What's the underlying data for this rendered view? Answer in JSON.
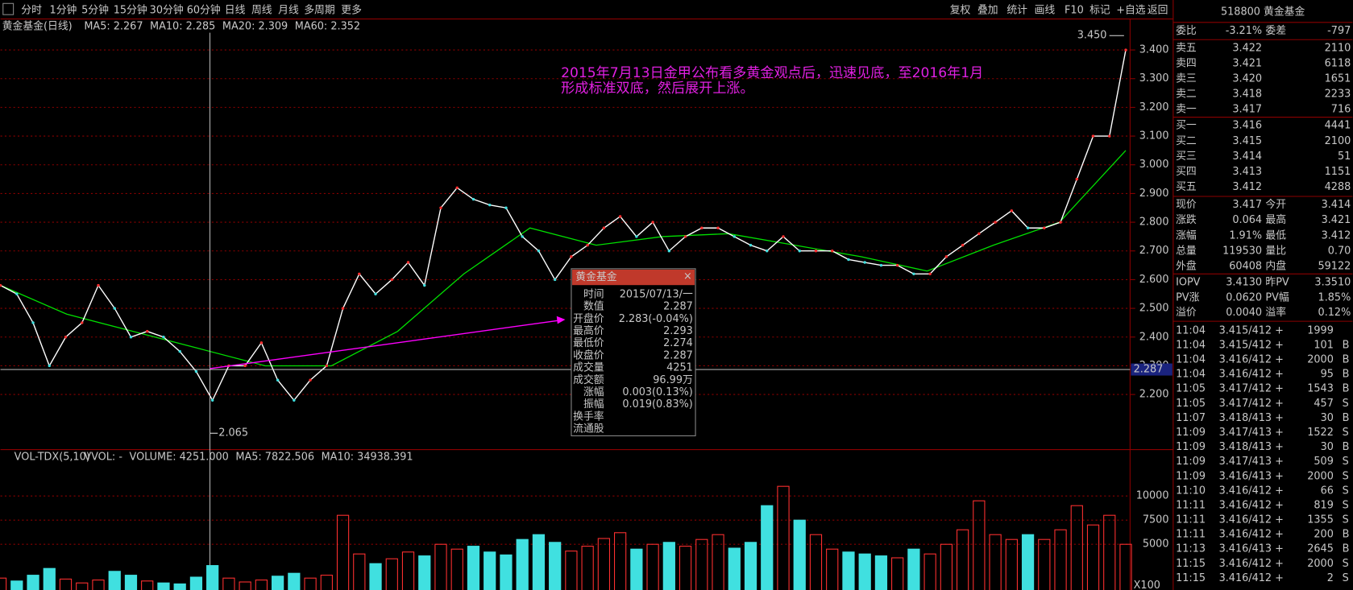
{
  "toolbar": {
    "periods": [
      "分时",
      "1分钟",
      "5分钟",
      "15分钟",
      "30分钟",
      "60分钟",
      "日线",
      "周线",
      "月线",
      "多周期",
      "更多"
    ],
    "tools": [
      "复权",
      "叠加",
      "统计",
      "画线",
      "F10",
      "标记",
      "+自选",
      "返回"
    ]
  },
  "chart_data": [
    {
      "type": "line",
      "title": "黄金基金(日线)",
      "legend": [
        {
          "name": "MA5: 2.267",
          "color": "#ffffff"
        },
        {
          "name": "MA10: 2.285",
          "color": "#ffff00"
        },
        {
          "name": "MA20: 2.309",
          "color": "#ff00ff"
        },
        {
          "name": "MA60: 2.352",
          "color": "#00e000"
        }
      ],
      "color": "#ffffff",
      "values": [
        2.58,
        2.55,
        2.45,
        2.3,
        2.4,
        2.45,
        2.58,
        2.5,
        2.4,
        2.42,
        2.4,
        2.35,
        2.28,
        2.18,
        2.3,
        2.3,
        2.38,
        2.25,
        2.18,
        2.25,
        2.3,
        2.5,
        2.62,
        2.55,
        2.6,
        2.66,
        2.58,
        2.85,
        2.92,
        2.88,
        2.86,
        2.85,
        2.75,
        2.7,
        2.6,
        2.68,
        2.72,
        2.78,
        2.82,
        2.75,
        2.8,
        2.7,
        2.75,
        2.78,
        2.78,
        2.75,
        2.72,
        2.7,
        2.75,
        2.7,
        2.7,
        2.7,
        2.67,
        2.66,
        2.65,
        2.65,
        2.62,
        2.62,
        2.68,
        2.72,
        2.76,
        2.8,
        2.84,
        2.78,
        2.78,
        2.8,
        2.95,
        3.1,
        3.1,
        3.4
      ],
      "ma60": {
        "color": "#00e000",
        "values": [
          2.58,
          2.48,
          2.42,
          2.36,
          2.3,
          2.3,
          2.42,
          2.62,
          2.78,
          2.72,
          2.75,
          2.76,
          2.72,
          2.68,
          2.63,
          2.72,
          2.8,
          3.05
        ]
      },
      "ylim": [
        2.008,
        3.508
      ],
      "yticks": [
        {
          "value": 2.2,
          "label": "2.200"
        },
        {
          "value": 2.3,
          "label": "2.300"
        },
        {
          "value": 2.4,
          "label": "2.400"
        },
        {
          "value": 2.5,
          "label": "2.500"
        },
        {
          "value": 2.6,
          "label": "2.600"
        },
        {
          "value": 2.7,
          "label": "2.700"
        },
        {
          "value": 2.8,
          "label": "2.800"
        },
        {
          "value": 2.9,
          "label": "2.900"
        },
        {
          "value": 3.0,
          "label": "3.000"
        },
        {
          "value": 3.1,
          "label": "3.100"
        },
        {
          "value": 3.2,
          "label": "3.200"
        },
        {
          "value": 3.3,
          "label": "3.300"
        },
        {
          "value": 3.4,
          "label": "3.400"
        }
      ],
      "grid": true,
      "high": {
        "value": 3.45,
        "label": "3.450"
      },
      "low": 2.065,
      "crosshair": 2.287,
      "annotation": [
        "2015年7月13日金甲公布看多黄金观点后，迅速见底，至2016年1月",
        "形成标准双底，然后展开上涨。"
      ]
    },
    {
      "type": "bar",
      "title": "VOL-TDX(5,10)",
      "legend": [
        {
          "name": "VVOL: -",
          "color": "#c8c8c8"
        },
        {
          "name": "VOLUME: 4251.000",
          "color": "#ffff00"
        },
        {
          "name": "MA5: 7822.506",
          "color": "#c8c8c8"
        },
        {
          "name": "MA10: 34938.391",
          "color": "#ff00ff"
        }
      ],
      "colors": {
        "up": "#ff3030",
        "down": "#40e0e0"
      },
      "values": [
        1500,
        1200,
        1800,
        2500,
        1400,
        1000,
        1300,
        2200,
        1800,
        1200,
        1000,
        900,
        1600,
        2800,
        1500,
        1100,
        1300,
        1700,
        2000,
        1500,
        1800,
        8000,
        4000,
        3000,
        3500,
        4200,
        3800,
        5000,
        4500,
        4800,
        4200,
        3900,
        5500,
        6000,
        5200,
        4300,
        4800,
        5600,
        6200,
        4500,
        5000,
        5200,
        4800,
        5500,
        6000,
        4600,
        5200,
        9000,
        11000,
        7500,
        6000,
        4500,
        4200,
        4000,
        3800,
        3600,
        4500,
        4000,
        5000,
        6500,
        9500,
        6000,
        5500,
        6000,
        5500,
        6500,
        9000,
        7000,
        8000,
        5000
      ],
      "ylim": [
        0,
        14800
      ],
      "yticks": [
        5000,
        7500,
        10000
      ],
      "unit": "X100"
    }
  ],
  "tooltip": {
    "title": "黄金基金",
    "rows": [
      {
        "label": "时间",
        "value": "2015/07/13/一",
        "color": "#c8c8c8"
      },
      {
        "label": "数值",
        "value": "2.287",
        "color": "#c8c8c8"
      },
      {
        "label": "开盘价",
        "value": "2.283(-0.04%)",
        "color": "#00e000"
      },
      {
        "label": "最高价",
        "value": "2.293",
        "color": "#ff3030"
      },
      {
        "label": "最低价",
        "value": "2.274",
        "color": "#00e000"
      },
      {
        "label": "收盘价",
        "value": "2.287",
        "color": "#ff3030"
      },
      {
        "label": "成交量",
        "value": "4251",
        "color": "#ffff00"
      },
      {
        "label": "成交额",
        "value": "96.99万",
        "color": "#c8c8c8"
      },
      {
        "label": "涨幅",
        "value": "0.003(0.13%)",
        "color": "#ff3030"
      },
      {
        "label": "振幅",
        "value": "0.019(0.83%)",
        "color": "#c8c8c8"
      },
      {
        "label": "换手率"
      },
      {
        "label": "流通股"
      }
    ]
  },
  "quote": {
    "title": "518800 黄金基金",
    "summary": [
      {
        "label": "委比",
        "value": "-3.21%",
        "label2": "委差",
        "value2": "-797",
        "color": "#00e000",
        "color2": "#00e000"
      }
    ],
    "sell": [
      {
        "label": "卖五",
        "value": "3.422",
        "label2": "2110"
      },
      {
        "label": "卖四",
        "value": "3.421",
        "label2": "6118"
      },
      {
        "label": "卖三",
        "value": "3.420",
        "label2": "1651"
      },
      {
        "label": "卖二",
        "value": "3.418",
        "label2": "2233"
      },
      {
        "label": "卖一",
        "value": "3.417",
        "label2": "716"
      }
    ],
    "buy": [
      {
        "label": "买一",
        "value": "3.416",
        "label2": "4441"
      },
      {
        "label": "买二",
        "value": "3.415",
        "label2": "2100"
      },
      {
        "label": "买三",
        "value": "3.414",
        "label2": "51"
      },
      {
        "label": "买四",
        "value": "3.413",
        "label2": "1151"
      },
      {
        "label": "买五",
        "value": "3.412",
        "label2": "4288"
      }
    ],
    "stats": [
      {
        "label": "现价",
        "value": "3.417",
        "label2": "今开",
        "value2": "3.414",
        "color": "#ff3030",
        "color2": "#ff3030"
      },
      {
        "label": "涨跌",
        "value": "0.064",
        "label2": "最高",
        "value2": "3.421",
        "color": "#ff3030",
        "color2": "#ff3030"
      },
      {
        "label": "涨幅",
        "value": "1.91%",
        "label2": "最低",
        "value2": "3.412",
        "color": "#ff3030",
        "color2": "#ff3030"
      },
      {
        "label": "总量",
        "value": "119530",
        "label2": "量比",
        "value2": "0.70",
        "color": "#ffff00",
        "color2": "#00e000"
      },
      {
        "label": "外盘",
        "value": "60408",
        "label2": "内盘",
        "value2": "59122",
        "color": "#ff3030",
        "color2": "#00e000"
      }
    ],
    "iopv": [
      {
        "label": "IOPV",
        "value": "3.4130",
        "label2": "昨PV",
        "value2": "3.3510",
        "color": "#ff3030",
        "color2": "#c8c8c8"
      },
      {
        "label": "PV涨",
        "value": "0.0620",
        "label2": "PV幅",
        "value2": "1.85%",
        "color": "#ff3030",
        "color2": "#ff3030"
      },
      {
        "label": "溢价",
        "value": "0.0040",
        "label2": "溢率",
        "value2": "0.12%",
        "color": "#ff3030",
        "color2": "#ff3030"
      }
    ],
    "trades": [
      [
        "11:04",
        "3.415/412",
        "+",
        "1999"
      ],
      [
        "11:04",
        "3.415/412",
        "+",
        "101",
        "B"
      ],
      [
        "11:04",
        "3.416/412",
        "+",
        "2000",
        "B"
      ],
      [
        "11:04",
        "3.416/412",
        "+",
        "95",
        "B"
      ],
      [
        "11:05",
        "3.417/412",
        "+",
        "1543",
        "B"
      ],
      [
        "11:05",
        "3.417/412",
        "+",
        "457",
        "S"
      ],
      [
        "11:07",
        "3.418/413",
        "+",
        "30",
        "B"
      ],
      [
        "11:09",
        "3.417/413",
        "+",
        "1522",
        "S"
      ],
      [
        "11:09",
        "3.418/413",
        "+",
        "30",
        "B"
      ],
      [
        "11:09",
        "3.417/413",
        "+",
        "509",
        "S"
      ],
      [
        "11:09",
        "3.416/413",
        "+",
        "2000",
        "S"
      ],
      [
        "11:10",
        "3.416/412",
        "+",
        "66",
        "S"
      ],
      [
        "11:11",
        "3.416/412",
        "+",
        "819",
        "S"
      ],
      [
        "11:11",
        "3.416/412",
        "+",
        "1355",
        "S"
      ],
      [
        "11:11",
        "3.416/412",
        "+",
        "200",
        "B"
      ],
      [
        "11:13",
        "3.416/413",
        "+",
        "2645",
        "B"
      ],
      [
        "11:15",
        "3.416/412",
        "+",
        "2000",
        "S"
      ],
      [
        "11:15",
        "3.416/412",
        "+",
        "2",
        "S"
      ]
    ]
  }
}
